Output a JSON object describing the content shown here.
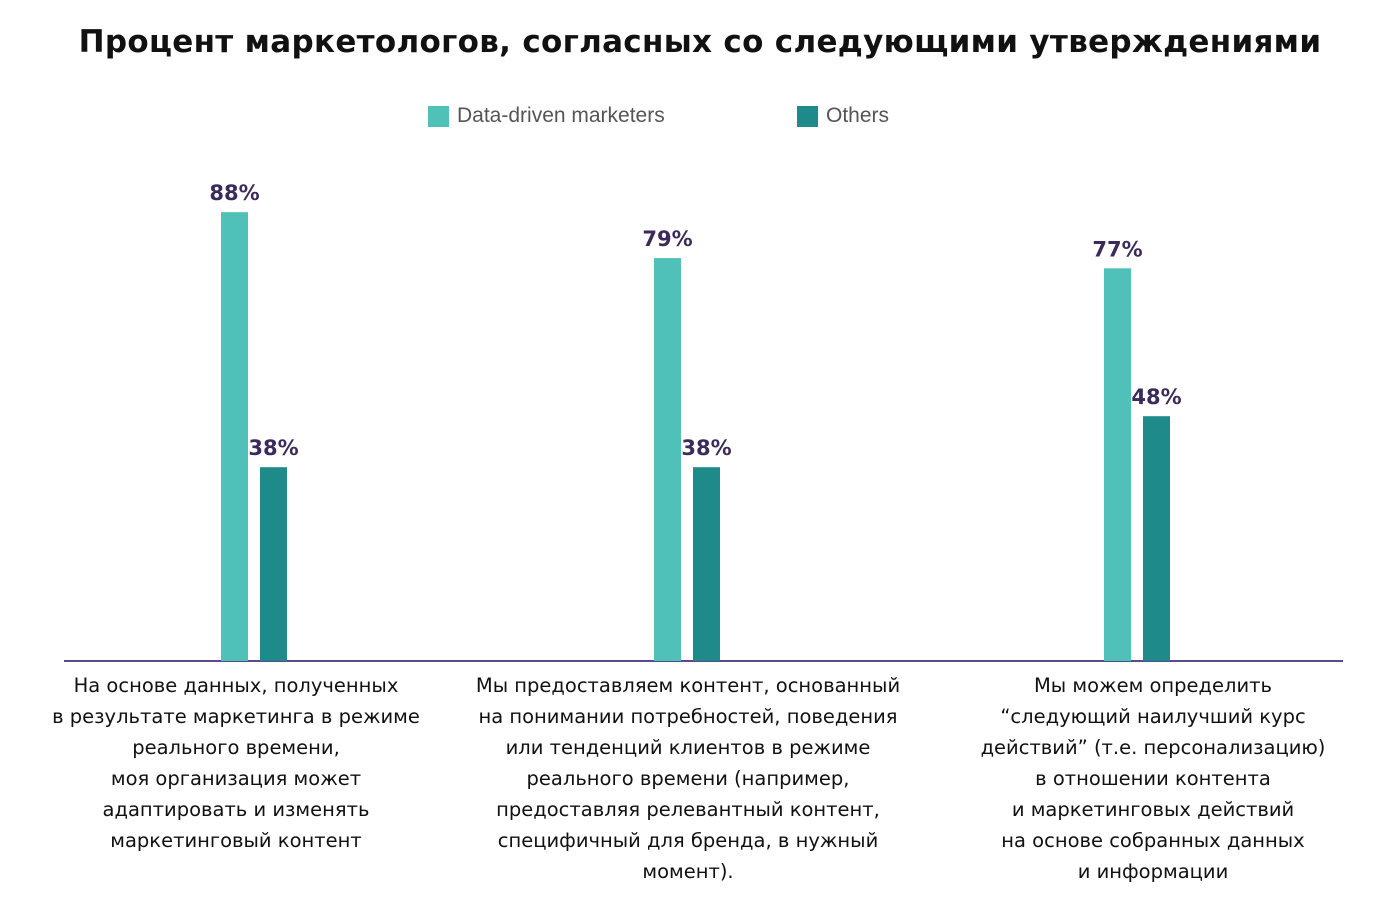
{
  "chart_data": {
    "type": "bar",
    "title": "Процент маркетологов, согласных со следующими утверждениями",
    "categories": [
      "На основе данных, полученных\nв результате маркетинга в режиме\nреального времени,\nмоя организация может\nадаптировать и изменять\nмаркетинговый контент",
      "Мы предоставляем контент, основанный\nна понимании потребностей, поведения\nили тенденций клиентов в режиме\nреального времени (например,\nпредоставляя релевантный контент,\nспецифичный для бренда, в нужный\nмомент).",
      "Мы можем определить\n“следующий наилучший курс\nдействий” (т.е. персонализацию)\nв отношении контента\nи маркетинговых действий\nна основе собранных данных\nи информации"
    ],
    "series": [
      {
        "name": "Data-driven marketers",
        "values": [
          88,
          79,
          77
        ],
        "labels": [
          "88%",
          "79%",
          "77%"
        ],
        "color": "#4fc1b9"
      },
      {
        "name": "Others",
        "values": [
          38,
          38,
          48
        ],
        "labels": [
          "38%",
          "38%",
          "48%"
        ],
        "color": "#1f8a8a"
      }
    ],
    "ylim": [
      0,
      100
    ],
    "label_color": "#3b2a5a",
    "axis_color": "#5a4a8a",
    "legend_position": "top-center",
    "grid": false
  }
}
